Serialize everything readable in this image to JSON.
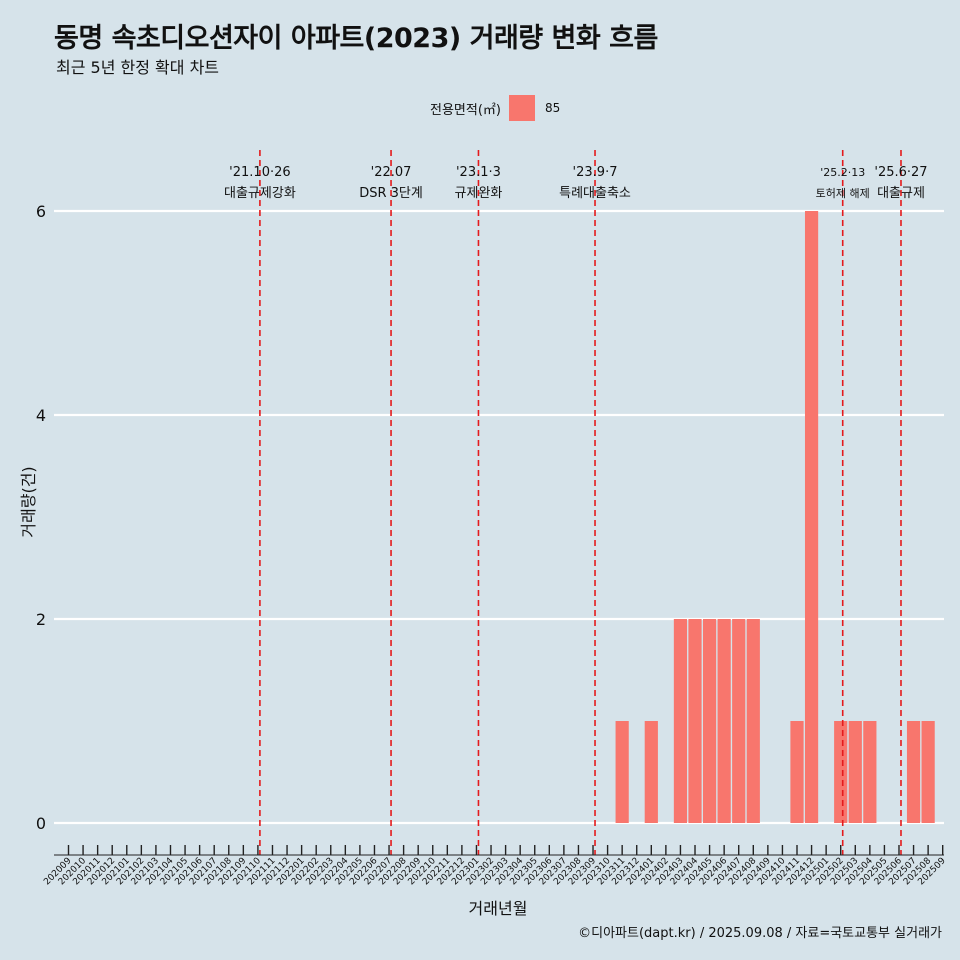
{
  "title": "동명 속초디오션자이 아파트(2023) 거래량 변화 흐름",
  "subtitle": "최근 5년 한정 확대 차트",
  "legend": {
    "title": "전용면적(㎡)",
    "label": "85",
    "color": "#f8766d"
  },
  "footer": "©디아파트(dapt.kr) / 2025.09.08 / 자료=국토교통부 실거래가",
  "chart_data": {
    "type": "bar",
    "xlabel": "거래년월",
    "ylabel": "거래량(건)",
    "ylim": [
      0,
      6
    ],
    "yticks": [
      0,
      2,
      4,
      6
    ],
    "grid": true,
    "legend_position": "top",
    "series": [
      {
        "name": "85",
        "color": "#f8766d"
      }
    ],
    "categories": [
      "202009",
      "202010",
      "202011",
      "202012",
      "202101",
      "202102",
      "202103",
      "202104",
      "202105",
      "202106",
      "202107",
      "202108",
      "202109",
      "202110",
      "202111",
      "202112",
      "202201",
      "202202",
      "202203",
      "202204",
      "202205",
      "202206",
      "202207",
      "202208",
      "202209",
      "202210",
      "202211",
      "202212",
      "202301",
      "202302",
      "202303",
      "202304",
      "202305",
      "202306",
      "202307",
      "202308",
      "202309",
      "202310",
      "202311",
      "202312",
      "202401",
      "202402",
      "202403",
      "202404",
      "202405",
      "202406",
      "202407",
      "202408",
      "202409",
      "202410",
      "202411",
      "202412",
      "202501",
      "202502",
      "202503",
      "202504",
      "202505",
      "202506",
      "202507",
      "202508",
      "202509"
    ],
    "values": [
      0,
      0,
      0,
      0,
      0,
      0,
      0,
      0,
      0,
      0,
      0,
      0,
      0,
      0,
      0,
      0,
      0,
      0,
      0,
      0,
      0,
      0,
      0,
      0,
      0,
      0,
      0,
      0,
      0,
      0,
      0,
      0,
      0,
      0,
      0,
      0,
      0,
      0,
      1,
      0,
      1,
      0,
      2,
      2,
      2,
      2,
      2,
      2,
      0,
      0,
      1,
      6,
      0,
      1,
      1,
      1,
      0,
      0,
      1,
      1,
      0
    ],
    "annotations": [
      {
        "category": "202110",
        "date": "'21.10·26",
        "label": "대출규제강화"
      },
      {
        "category": "202207",
        "date": "'22.07",
        "label": "DSR 3단계"
      },
      {
        "category": "202301",
        "date": "'23.1·3",
        "label": "규제완화"
      },
      {
        "category": "202309",
        "date": "'23.9·7",
        "label": "특례대출축소"
      },
      {
        "category": "202502",
        "date": "'25.2·13",
        "label": "토허제 해제"
      },
      {
        "category": "202506",
        "date": "'25.6·27",
        "label": "대출규제"
      }
    ]
  }
}
